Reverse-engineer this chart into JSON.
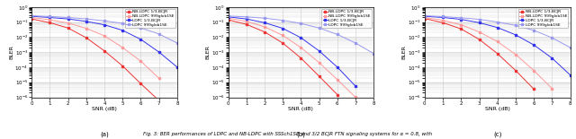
{
  "subplots": [
    {
      "label": "(a)",
      "xlabel": "SNR (dB)",
      "ylabel": "BLER",
      "xlim": [
        0,
        8
      ],
      "ylim": [
        1e-06,
        1.0
      ],
      "series": [
        {
          "label": "NB-LDPC 1/3-BCJR",
          "color": "#EE3333",
          "marker": "s",
          "x": [
            0,
            1,
            2,
            3,
            4,
            5,
            6,
            7
          ],
          "y": [
            0.16,
            0.09,
            0.04,
            0.009,
            0.0012,
            0.00012,
            8e-06,
            6e-07
          ]
        },
        {
          "label": "NB-LDPC 999glob1SE",
          "color": "#FF9999",
          "marker": "s",
          "x": [
            0,
            1,
            2,
            3,
            4,
            5,
            6,
            7
          ],
          "y": [
            0.2,
            0.14,
            0.085,
            0.038,
            0.012,
            0.002,
            0.00025,
            1.8e-05
          ]
        },
        {
          "label": "LDPC 1/3-BCJR",
          "color": "#3333EE",
          "marker": "s",
          "x": [
            0,
            1,
            2,
            3,
            4,
            5,
            6,
            7,
            8
          ],
          "y": [
            0.24,
            0.2,
            0.16,
            0.11,
            0.065,
            0.028,
            0.007,
            0.001,
            0.0001
          ]
        },
        {
          "label": "LDPC 999glob1SE",
          "color": "#9999EE",
          "marker": "s",
          "x": [
            0,
            1,
            2,
            3,
            4,
            5,
            6,
            7,
            8
          ],
          "y": [
            0.26,
            0.23,
            0.2,
            0.16,
            0.12,
            0.08,
            0.04,
            0.016,
            0.004
          ]
        }
      ]
    },
    {
      "label": "(b)",
      "xlabel": "SNR (dB)",
      "ylabel": "BLER",
      "xlim": [
        0,
        8
      ],
      "ylim": [
        1e-06,
        1.0
      ],
      "series": [
        {
          "label": "NB-LDPC 1/3-BCJR",
          "color": "#EE3333",
          "marker": "s",
          "x": [
            0,
            1,
            2,
            3,
            4,
            5,
            6
          ],
          "y": [
            0.14,
            0.07,
            0.022,
            0.004,
            0.0004,
            2.5e-05,
            1.5e-06
          ]
        },
        {
          "label": "NB-LDPC 999glob1SE",
          "color": "#FF9999",
          "marker": "s",
          "x": [
            0,
            1,
            2,
            3,
            4,
            5,
            6,
            7
          ],
          "y": [
            0.18,
            0.11,
            0.048,
            0.013,
            0.002,
            0.0002,
            1.5e-05,
            1e-06
          ]
        },
        {
          "label": "LDPC 1/3-BCJR",
          "color": "#3333EE",
          "marker": "s",
          "x": [
            0,
            1,
            2,
            3,
            4,
            5,
            6,
            7
          ],
          "y": [
            0.22,
            0.16,
            0.09,
            0.038,
            0.009,
            0.0012,
            0.0001,
            5.5e-06
          ]
        },
        {
          "label": "LDPC 999glob1SE",
          "color": "#9999EE",
          "marker": "s",
          "x": [
            0,
            1,
            2,
            3,
            4,
            5,
            6,
            7,
            8
          ],
          "y": [
            0.25,
            0.22,
            0.18,
            0.13,
            0.08,
            0.04,
            0.015,
            0.004,
            0.0008
          ]
        }
      ]
    },
    {
      "label": "(c)",
      "xlabel": "SNR (dB)",
      "ylabel": "BLER",
      "xlim": [
        0,
        8
      ],
      "ylim": [
        1e-06,
        1.0
      ],
      "series": [
        {
          "label": "NB-LDPC 1/3-BCJR",
          "color": "#EE3333",
          "marker": "s",
          "x": [
            0,
            1,
            2,
            3,
            4,
            5,
            6
          ],
          "y": [
            0.17,
            0.09,
            0.035,
            0.007,
            0.0008,
            6e-05,
            3.5e-06
          ]
        },
        {
          "label": "NB-LDPC 999glob1SE",
          "color": "#FF9999",
          "marker": "s",
          "x": [
            0,
            1,
            2,
            3,
            4,
            5,
            6,
            7
          ],
          "y": [
            0.2,
            0.13,
            0.065,
            0.022,
            0.005,
            0.0007,
            6e-05,
            3.8e-06
          ]
        },
        {
          "label": "LDPC 1/3-BCJR",
          "color": "#3333EE",
          "marker": "s",
          "x": [
            0,
            1,
            2,
            3,
            4,
            5,
            6,
            7,
            8
          ],
          "y": [
            0.24,
            0.2,
            0.15,
            0.09,
            0.043,
            0.014,
            0.003,
            0.0004,
            3e-05
          ]
        },
        {
          "label": "LDPC 999glob1SE",
          "color": "#9999EE",
          "marker": "s",
          "x": [
            0,
            1,
            2,
            3,
            4,
            5,
            6,
            7,
            8
          ],
          "y": [
            0.26,
            0.23,
            0.19,
            0.15,
            0.1,
            0.06,
            0.028,
            0.009,
            0.002
          ]
        }
      ]
    }
  ],
  "caption": "Fig. 3: BER performances of LDPC and NB-LDPC with SSSch1SE and 3/2 BCJR FTN signaling systems for α = 0.8, with",
  "bg_color": "#FFFFFF",
  "grid_color": "#CCCCCC"
}
